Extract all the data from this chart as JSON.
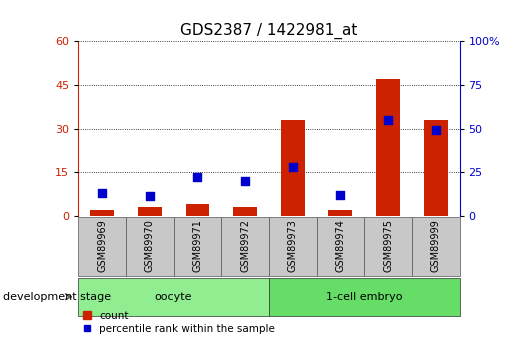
{
  "title": "GDS2387 / 1422981_at",
  "samples": [
    "GSM89969",
    "GSM89970",
    "GSM89971",
    "GSM89972",
    "GSM89973",
    "GSM89974",
    "GSM89975",
    "GSM89999"
  ],
  "count_values": [
    2,
    3,
    4,
    3,
    33,
    2,
    47,
    33
  ],
  "percentile_values": [
    13,
    11,
    22,
    20,
    28,
    12,
    55,
    49
  ],
  "groups": [
    {
      "label": "oocyte",
      "indices": [
        0,
        3
      ],
      "color": "#90EE90"
    },
    {
      "label": "1-cell embryo",
      "indices": [
        4,
        7
      ],
      "color": "#66DD66"
    }
  ],
  "left_ylim": [
    0,
    60
  ],
  "right_ylim": [
    0,
    100
  ],
  "left_yticks": [
    0,
    15,
    30,
    45,
    60
  ],
  "right_yticks": [
    0,
    25,
    50,
    75,
    100
  ],
  "left_color": "#CC2200",
  "right_color": "#0000CC",
  "bar_color": "#CC2200",
  "dot_color": "#0000CC",
  "bar_width": 0.5,
  "dot_size": 30,
  "title_fontsize": 11,
  "tick_fontsize": 8,
  "label_fontsize": 8,
  "sample_label_fontsize": 7,
  "group_label_fontsize": 8,
  "devstage_fontsize": 8,
  "legend_fontsize": 7.5,
  "legend_count": "count",
  "legend_percentile": "percentile rank within the sample",
  "development_stage_label": "development stage"
}
